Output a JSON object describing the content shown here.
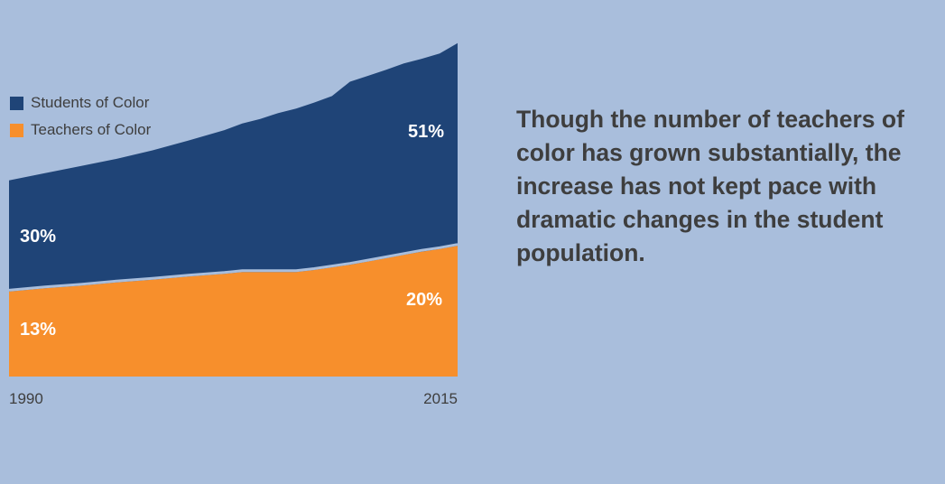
{
  "colors": {
    "background": "#a9bedc",
    "students": "#1f4477",
    "teachers": "#f78f2c",
    "text": "#3e3e3e",
    "label_text": "#ffffff"
  },
  "headline": "Though the number of teachers of color has grown substantially, the increase has not kept pace with dramatic changes in the student population.",
  "chart_data": {
    "type": "area",
    "stacked": false,
    "x_range": [
      1990,
      2015
    ],
    "xtick_labels": [
      "1990",
      "2015"
    ],
    "y_range": [
      0,
      55
    ],
    "grid": false,
    "legend_placement": "top-left",
    "legend": [
      {
        "label": "Students of Color",
        "color": "#1f4477"
      },
      {
        "label": "Teachers of Color",
        "color": "#f78f2c"
      }
    ],
    "series": [
      {
        "name": "Students of Color",
        "color": "#1f4477",
        "x": [
          1990,
          1992,
          1994,
          1996,
          1998,
          2000,
          2002,
          2003,
          2004,
          2005,
          2006,
          2007,
          2008,
          2009,
          2010,
          2011,
          2012,
          2013,
          2014,
          2015
        ],
        "values": [
          30,
          31.1,
          32.2,
          33.3,
          34.6,
          36.1,
          37.7,
          38.7,
          39.4,
          40.3,
          41.0,
          41.9,
          42.9,
          45.1,
          46.0,
          46.9,
          47.9,
          48.6,
          49.4,
          51
        ],
        "start_label": "30%",
        "end_label": "51%"
      },
      {
        "name": "Teachers of Color",
        "color": "#f78f2c",
        "x": [
          1990,
          1992,
          1994,
          1996,
          1998,
          2000,
          2002,
          2003,
          2004,
          2005,
          2006,
          2007,
          2008,
          2009,
          2010,
          2011,
          2012,
          2013,
          2014,
          2015
        ],
        "values": [
          13,
          13.5,
          13.9,
          14.4,
          14.8,
          15.3,
          15.7,
          16.0,
          16.0,
          16.0,
          16.0,
          16.3,
          16.7,
          17.1,
          17.6,
          18.1,
          18.6,
          19.1,
          19.5,
          20
        ],
        "start_label": "13%",
        "end_label": "20%"
      }
    ]
  }
}
